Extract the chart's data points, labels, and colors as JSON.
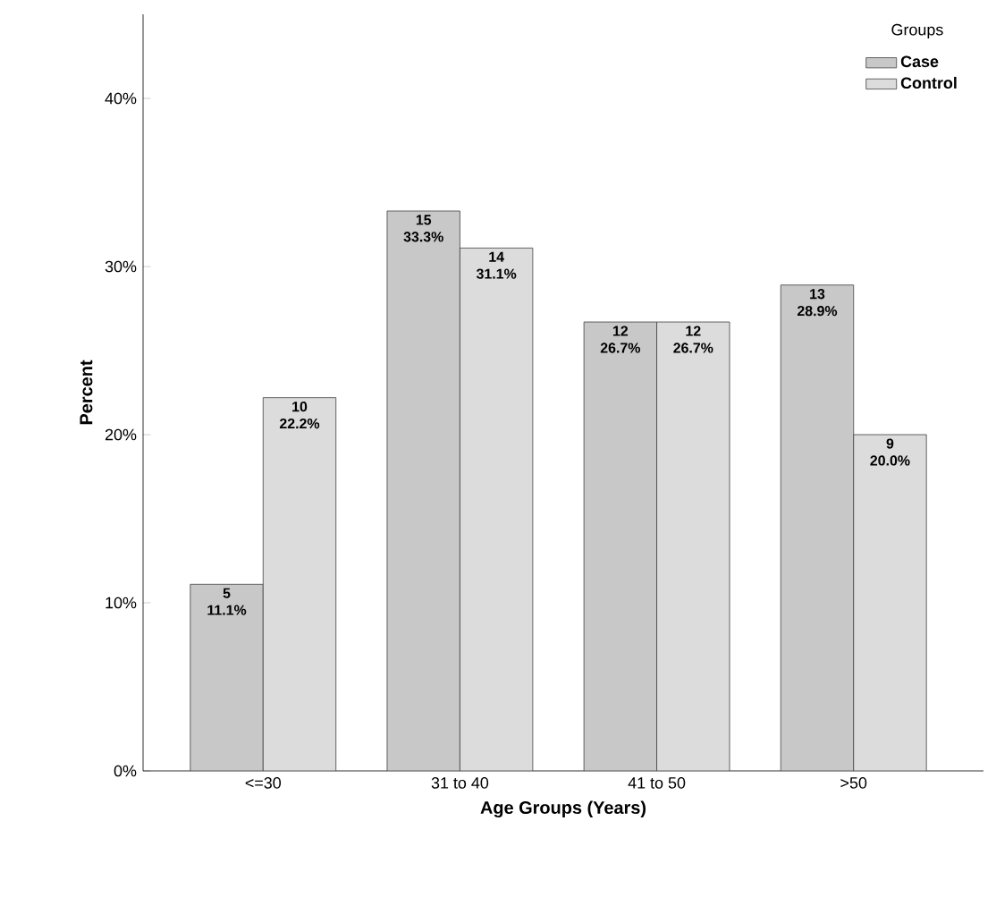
{
  "chart_data": {
    "type": "bar",
    "xlabel": "Age Groups (Years)",
    "ylabel": "Percent",
    "legend_title": "Groups",
    "categories": [
      "<=30",
      "31 to 40",
      "41 to 50",
      ">50"
    ],
    "series": [
      {
        "name": "Case",
        "color": "#c8c8c8",
        "values": [
          11.1,
          33.3,
          26.7,
          28.9
        ],
        "value_labels": [
          "5 11.1%",
          "15 33.3%",
          "12 26.7%",
          "13 28.9%"
        ]
      },
      {
        "name": "Control",
        "color": "#dcdcdc",
        "values": [
          22.2,
          31.1,
          26.7,
          20.0
        ],
        "value_labels": [
          "10 22.2%",
          "14 31.1%",
          "12 26.7%",
          "9 20.0%"
        ]
      }
    ],
    "ylim": [
      0,
      45
    ],
    "yticks": [
      {
        "value": 0,
        "label": "0%"
      },
      {
        "value": 10,
        "label": "10%"
      },
      {
        "value": 20,
        "label": "20%"
      },
      {
        "value": 30,
        "label": "30%"
      },
      {
        "value": 40,
        "label": "40%"
      }
    ],
    "grid": false,
    "legend": "top right"
  }
}
